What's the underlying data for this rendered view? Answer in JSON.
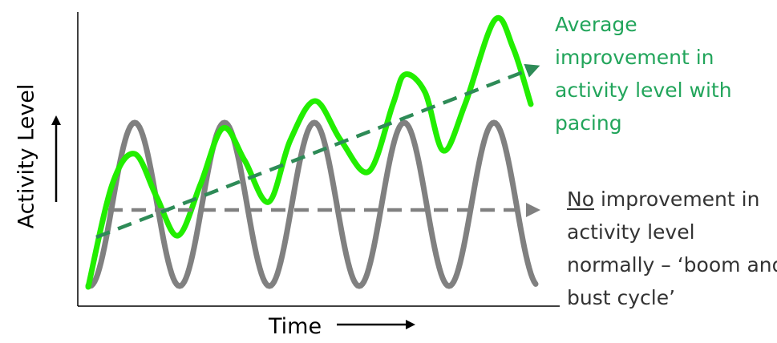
{
  "axes": {
    "x_label": "Time",
    "y_label": "Activity Level"
  },
  "annotations": {
    "pacing": {
      "lines": [
        "Average",
        "improvement in",
        "activity level with",
        "pacing"
      ],
      "color": "#22a55b"
    },
    "boom_bust": {
      "underlined_word": "No",
      "first_line_rest": " improvement in",
      "lines": [
        "activity level",
        "normally – ‘boom and",
        "bust cycle’"
      ],
      "color": "#333333"
    }
  },
  "series": {
    "boom_bust_color": "#808080",
    "pacing_color": "#22ee00",
    "pacing_trend_color": "#2e8b57",
    "flat_trend_color": "#808080",
    "boom_bust_peaks": 5
  }
}
